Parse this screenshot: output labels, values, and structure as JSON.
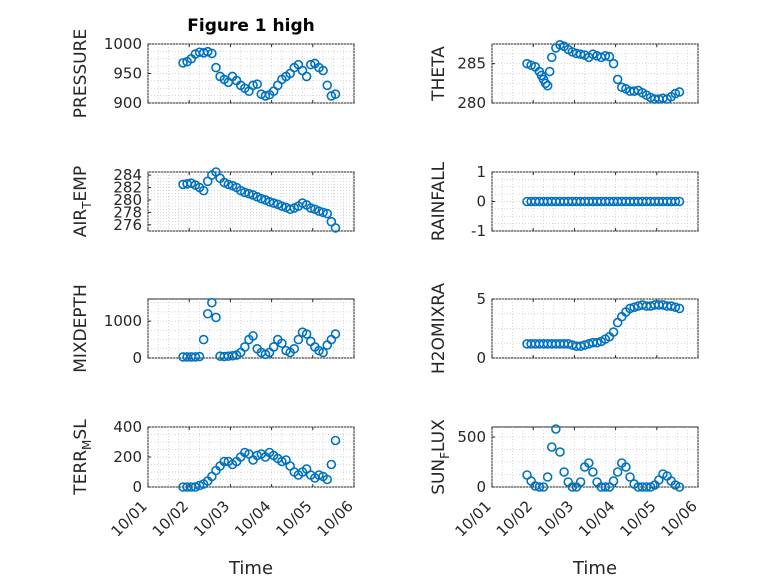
{
  "figure": {
    "title": "Figure 1 high"
  },
  "colors": {
    "marker": "#0072BD"
  },
  "chart_data": [
    {
      "type": "scatter",
      "name": "PRESSURE",
      "ylabel": "PRESSURE",
      "ylim": [
        900,
        1000
      ],
      "yticks": [
        900,
        950,
        1000
      ],
      "ytick_labels": [
        "900",
        "950",
        "1000"
      ],
      "xlim": [
        0,
        5
      ],
      "x_tick_labels": [
        "10/01",
        "10/02",
        "10/03",
        "10/04",
        "10/05",
        "10/06"
      ],
      "x": [
        0.85,
        0.95,
        1.05,
        1.15,
        1.25,
        1.35,
        1.45,
        1.55,
        1.65,
        1.75,
        1.85,
        1.95,
        2.05,
        2.15,
        2.25,
        2.35,
        2.45,
        2.55,
        2.65,
        2.75,
        2.85,
        2.95,
        3.05,
        3.15,
        3.25,
        3.35,
        3.45,
        3.55,
        3.65,
        3.75,
        3.85,
        3.95,
        4.05,
        4.15,
        4.25,
        4.35,
        4.45,
        4.55
      ],
      "y": [
        968,
        970,
        975,
        983,
        986,
        985,
        987,
        984,
        960,
        945,
        940,
        935,
        945,
        938,
        930,
        925,
        920,
        930,
        932,
        915,
        912,
        914,
        920,
        930,
        940,
        945,
        950,
        960,
        965,
        955,
        945,
        965,
        967,
        960,
        955,
        930,
        912,
        915
      ]
    },
    {
      "type": "scatter",
      "name": "THETA",
      "ylabel": "THETA",
      "ylim": [
        280,
        287.5
      ],
      "yticks": [
        280,
        285
      ],
      "ytick_labels": [
        "280",
        "285"
      ],
      "xlim": [
        0,
        5
      ],
      "x_tick_labels": [
        "10/01",
        "10/02",
        "10/03",
        "10/04",
        "10/05",
        "10/06"
      ],
      "x": [
        0.85,
        0.95,
        1.05,
        1.15,
        1.2,
        1.25,
        1.3,
        1.35,
        1.4,
        1.45,
        1.55,
        1.65,
        1.75,
        1.85,
        1.95,
        2.05,
        2.15,
        2.25,
        2.35,
        2.45,
        2.55,
        2.65,
        2.75,
        2.85,
        2.95,
        3.05,
        3.15,
        3.25,
        3.35,
        3.45,
        3.55,
        3.65,
        3.75,
        3.85,
        3.95,
        4.05,
        4.15,
        4.25,
        4.35,
        4.45,
        4.55
      ],
      "y": [
        285,
        284.8,
        284.6,
        284,
        283.5,
        283,
        282.5,
        282.2,
        284,
        285.8,
        287,
        287.4,
        287.2,
        286.8,
        286.5,
        286.3,
        286.2,
        286.1,
        285.8,
        286.2,
        286,
        285.8,
        286,
        285.9,
        285,
        283,
        282,
        281.8,
        281.5,
        281.5,
        281.6,
        281.3,
        281,
        280.7,
        280.5,
        280.5,
        280.6,
        280.5,
        280.8,
        281.2,
        281.4
      ]
    },
    {
      "type": "scatter",
      "name": "AIR_TEMP",
      "ylabel": "AIR_TEMP",
      "ylim": [
        275,
        284.5
      ],
      "yticks": [
        276,
        278,
        280,
        282,
        284
      ],
      "ytick_labels": [
        "276",
        "278",
        "280",
        "282",
        "284"
      ],
      "xlim": [
        0,
        5
      ],
      "x_tick_labels": [
        "10/01",
        "10/02",
        "10/03",
        "10/04",
        "10/05",
        "10/06"
      ],
      "x": [
        0.85,
        0.95,
        1.05,
        1.15,
        1.25,
        1.35,
        1.45,
        1.55,
        1.65,
        1.75,
        1.85,
        1.95,
        2.05,
        2.15,
        2.25,
        2.35,
        2.45,
        2.55,
        2.65,
        2.75,
        2.85,
        2.95,
        3.05,
        3.15,
        3.25,
        3.35,
        3.45,
        3.55,
        3.65,
        3.75,
        3.85,
        3.95,
        4.05,
        4.15,
        4.25,
        4.35,
        4.45,
        4.55
      ],
      "y": [
        282.5,
        282.6,
        282.7,
        282.4,
        282,
        281.5,
        283,
        284,
        284.5,
        283.5,
        282.8,
        282.5,
        282.3,
        282,
        281.5,
        281.2,
        281,
        280.8,
        280.5,
        280.2,
        280,
        279.7,
        279.5,
        279.3,
        279,
        278.8,
        278.5,
        278.7,
        279,
        279.5,
        279.2,
        278.7,
        278.5,
        278.2,
        278,
        277.8,
        276.5,
        275.5
      ]
    },
    {
      "type": "scatter",
      "name": "RAINFALL",
      "ylabel": "RAINFALL",
      "ylim": [
        -1,
        1
      ],
      "yticks": [
        -1,
        0,
        1
      ],
      "ytick_labels": [
        "-1",
        "0",
        "1"
      ],
      "xlim": [
        0,
        5
      ],
      "x_tick_labels": [
        "10/01",
        "10/02",
        "10/03",
        "10/04",
        "10/05",
        "10/06"
      ],
      "x": [
        0.85,
        0.95,
        1.05,
        1.15,
        1.25,
        1.35,
        1.45,
        1.55,
        1.65,
        1.75,
        1.85,
        1.95,
        2.05,
        2.15,
        2.25,
        2.35,
        2.45,
        2.55,
        2.65,
        2.75,
        2.85,
        2.95,
        3.05,
        3.15,
        3.25,
        3.35,
        3.45,
        3.55,
        3.65,
        3.75,
        3.85,
        3.95,
        4.05,
        4.15,
        4.25,
        4.35,
        4.45,
        4.55
      ],
      "y": [
        0,
        0,
        0,
        0,
        0,
        0,
        0,
        0,
        0,
        0,
        0,
        0,
        0,
        0,
        0,
        0,
        0,
        0,
        0,
        0,
        0,
        0,
        0,
        0,
        0,
        0,
        0,
        0,
        0,
        0,
        0,
        0,
        0,
        0,
        0,
        0,
        0,
        0
      ]
    },
    {
      "type": "scatter",
      "name": "MIXDEPTH",
      "ylabel": "MIXDEPTH",
      "ylim": [
        0,
        1600
      ],
      "yticks": [
        0,
        1000
      ],
      "ytick_labels": [
        "0",
        "1000"
      ],
      "xlim": [
        0,
        5
      ],
      "x_tick_labels": [
        "10/01",
        "10/02",
        "10/03",
        "10/04",
        "10/05",
        "10/06"
      ],
      "x": [
        0.85,
        0.95,
        1.05,
        1.15,
        1.25,
        1.35,
        1.45,
        1.55,
        1.65,
        1.75,
        1.85,
        1.95,
        2.05,
        2.15,
        2.25,
        2.35,
        2.45,
        2.55,
        2.65,
        2.75,
        2.85,
        2.95,
        3.05,
        3.15,
        3.25,
        3.35,
        3.45,
        3.55,
        3.65,
        3.75,
        3.85,
        3.95,
        4.05,
        4.15,
        4.25,
        4.35,
        4.45,
        4.55
      ],
      "y": [
        30,
        30,
        30,
        30,
        40,
        500,
        1200,
        1500,
        1100,
        50,
        40,
        50,
        60,
        80,
        150,
        300,
        500,
        600,
        250,
        150,
        100,
        150,
        300,
        500,
        400,
        200,
        150,
        250,
        500,
        700,
        650,
        450,
        300,
        200,
        150,
        350,
        500,
        650
      ]
    },
    {
      "type": "scatter",
      "name": "H2OMIXRA",
      "ylabel": "H2OMIXRA",
      "ylim": [
        0,
        5
      ],
      "yticks": [
        0,
        5
      ],
      "ytick_labels": [
        "0",
        "5"
      ],
      "xlim": [
        0,
        5
      ],
      "x_tick_labels": [
        "10/01",
        "10/02",
        "10/03",
        "10/04",
        "10/05",
        "10/06"
      ],
      "x": [
        0.85,
        0.95,
        1.05,
        1.15,
        1.25,
        1.35,
        1.45,
        1.55,
        1.65,
        1.75,
        1.85,
        1.95,
        2.05,
        2.15,
        2.25,
        2.35,
        2.45,
        2.55,
        2.65,
        2.75,
        2.85,
        2.95,
        3.05,
        3.15,
        3.25,
        3.35,
        3.45,
        3.55,
        3.65,
        3.75,
        3.85,
        3.95,
        4.05,
        4.15,
        4.25,
        4.35,
        4.45,
        4.55
      ],
      "y": [
        1.2,
        1.2,
        1.2,
        1.2,
        1.2,
        1.2,
        1.2,
        1.2,
        1.2,
        1.2,
        1.2,
        1.1,
        1.0,
        1.0,
        1.1,
        1.2,
        1.3,
        1.3,
        1.4,
        1.6,
        1.8,
        2.2,
        3.0,
        3.5,
        3.9,
        4.2,
        4.3,
        4.4,
        4.5,
        4.4,
        4.4,
        4.5,
        4.5,
        4.5,
        4.4,
        4.4,
        4.3,
        4.2
      ]
    },
    {
      "type": "scatter",
      "name": "TERR_MSL",
      "ylabel": "TERR_MSL",
      "ylim": [
        0,
        400
      ],
      "yticks": [
        0,
        200,
        400
      ],
      "ytick_labels": [
        "0",
        "200",
        "400"
      ],
      "xlim": [
        0,
        5
      ],
      "x_tick_labels": [
        "10/01",
        "10/02",
        "10/03",
        "10/04",
        "10/05",
        "10/06"
      ],
      "x": [
        0.85,
        0.95,
        1.05,
        1.15,
        1.25,
        1.35,
        1.45,
        1.55,
        1.65,
        1.75,
        1.85,
        1.95,
        2.05,
        2.15,
        2.25,
        2.35,
        2.45,
        2.55,
        2.65,
        2.75,
        2.85,
        2.95,
        3.05,
        3.15,
        3.25,
        3.35,
        3.45,
        3.55,
        3.65,
        3.75,
        3.85,
        3.95,
        4.05,
        4.15,
        4.25,
        4.35,
        4.45,
        4.55
      ],
      "y": [
        0,
        0,
        0,
        0,
        10,
        20,
        40,
        70,
        110,
        140,
        170,
        170,
        150,
        170,
        200,
        230,
        220,
        180,
        210,
        220,
        200,
        230,
        210,
        190,
        170,
        180,
        140,
        100,
        80,
        100,
        120,
        80,
        60,
        80,
        70,
        50,
        150,
        310
      ]
    },
    {
      "type": "scatter",
      "name": "SUN_FLUX",
      "ylabel": "SUN_FLUX",
      "ylim": [
        0,
        600
      ],
      "yticks": [
        0,
        500
      ],
      "ytick_labels": [
        "0",
        "500"
      ],
      "xlim": [
        0,
        5
      ],
      "x_tick_labels": [
        "10/01",
        "10/02",
        "10/03",
        "10/04",
        "10/05",
        "10/06"
      ],
      "x": [
        0.85,
        0.95,
        1.05,
        1.15,
        1.25,
        1.35,
        1.45,
        1.55,
        1.65,
        1.75,
        1.85,
        1.95,
        2.05,
        2.15,
        2.25,
        2.35,
        2.45,
        2.55,
        2.65,
        2.75,
        2.85,
        2.95,
        3.05,
        3.15,
        3.25,
        3.35,
        3.45,
        3.55,
        3.65,
        3.75,
        3.85,
        3.95,
        4.05,
        4.15,
        4.25,
        4.35,
        4.45,
        4.55
      ],
      "y": [
        120,
        60,
        10,
        0,
        0,
        100,
        400,
        580,
        350,
        150,
        50,
        0,
        0,
        50,
        200,
        240,
        150,
        50,
        0,
        0,
        0,
        60,
        150,
        240,
        200,
        100,
        30,
        0,
        0,
        0,
        0,
        20,
        70,
        130,
        110,
        60,
        20,
        0
      ]
    }
  ],
  "ylabels_rendered": [
    {
      "main": "PRESSURE"
    },
    {
      "main": "THETA"
    },
    {
      "main": "AIR",
      "sub": "T",
      "tail": "EMP"
    },
    {
      "main": "RAINFALL"
    },
    {
      "main": "MIXDEPTH"
    },
    {
      "main": "H2OMIXRA"
    },
    {
      "main": "TERR",
      "sub": "M",
      "tail": "SL"
    },
    {
      "main": "SUN",
      "sub": "F",
      "tail": "LUX"
    }
  ],
  "xlabel": "Time"
}
